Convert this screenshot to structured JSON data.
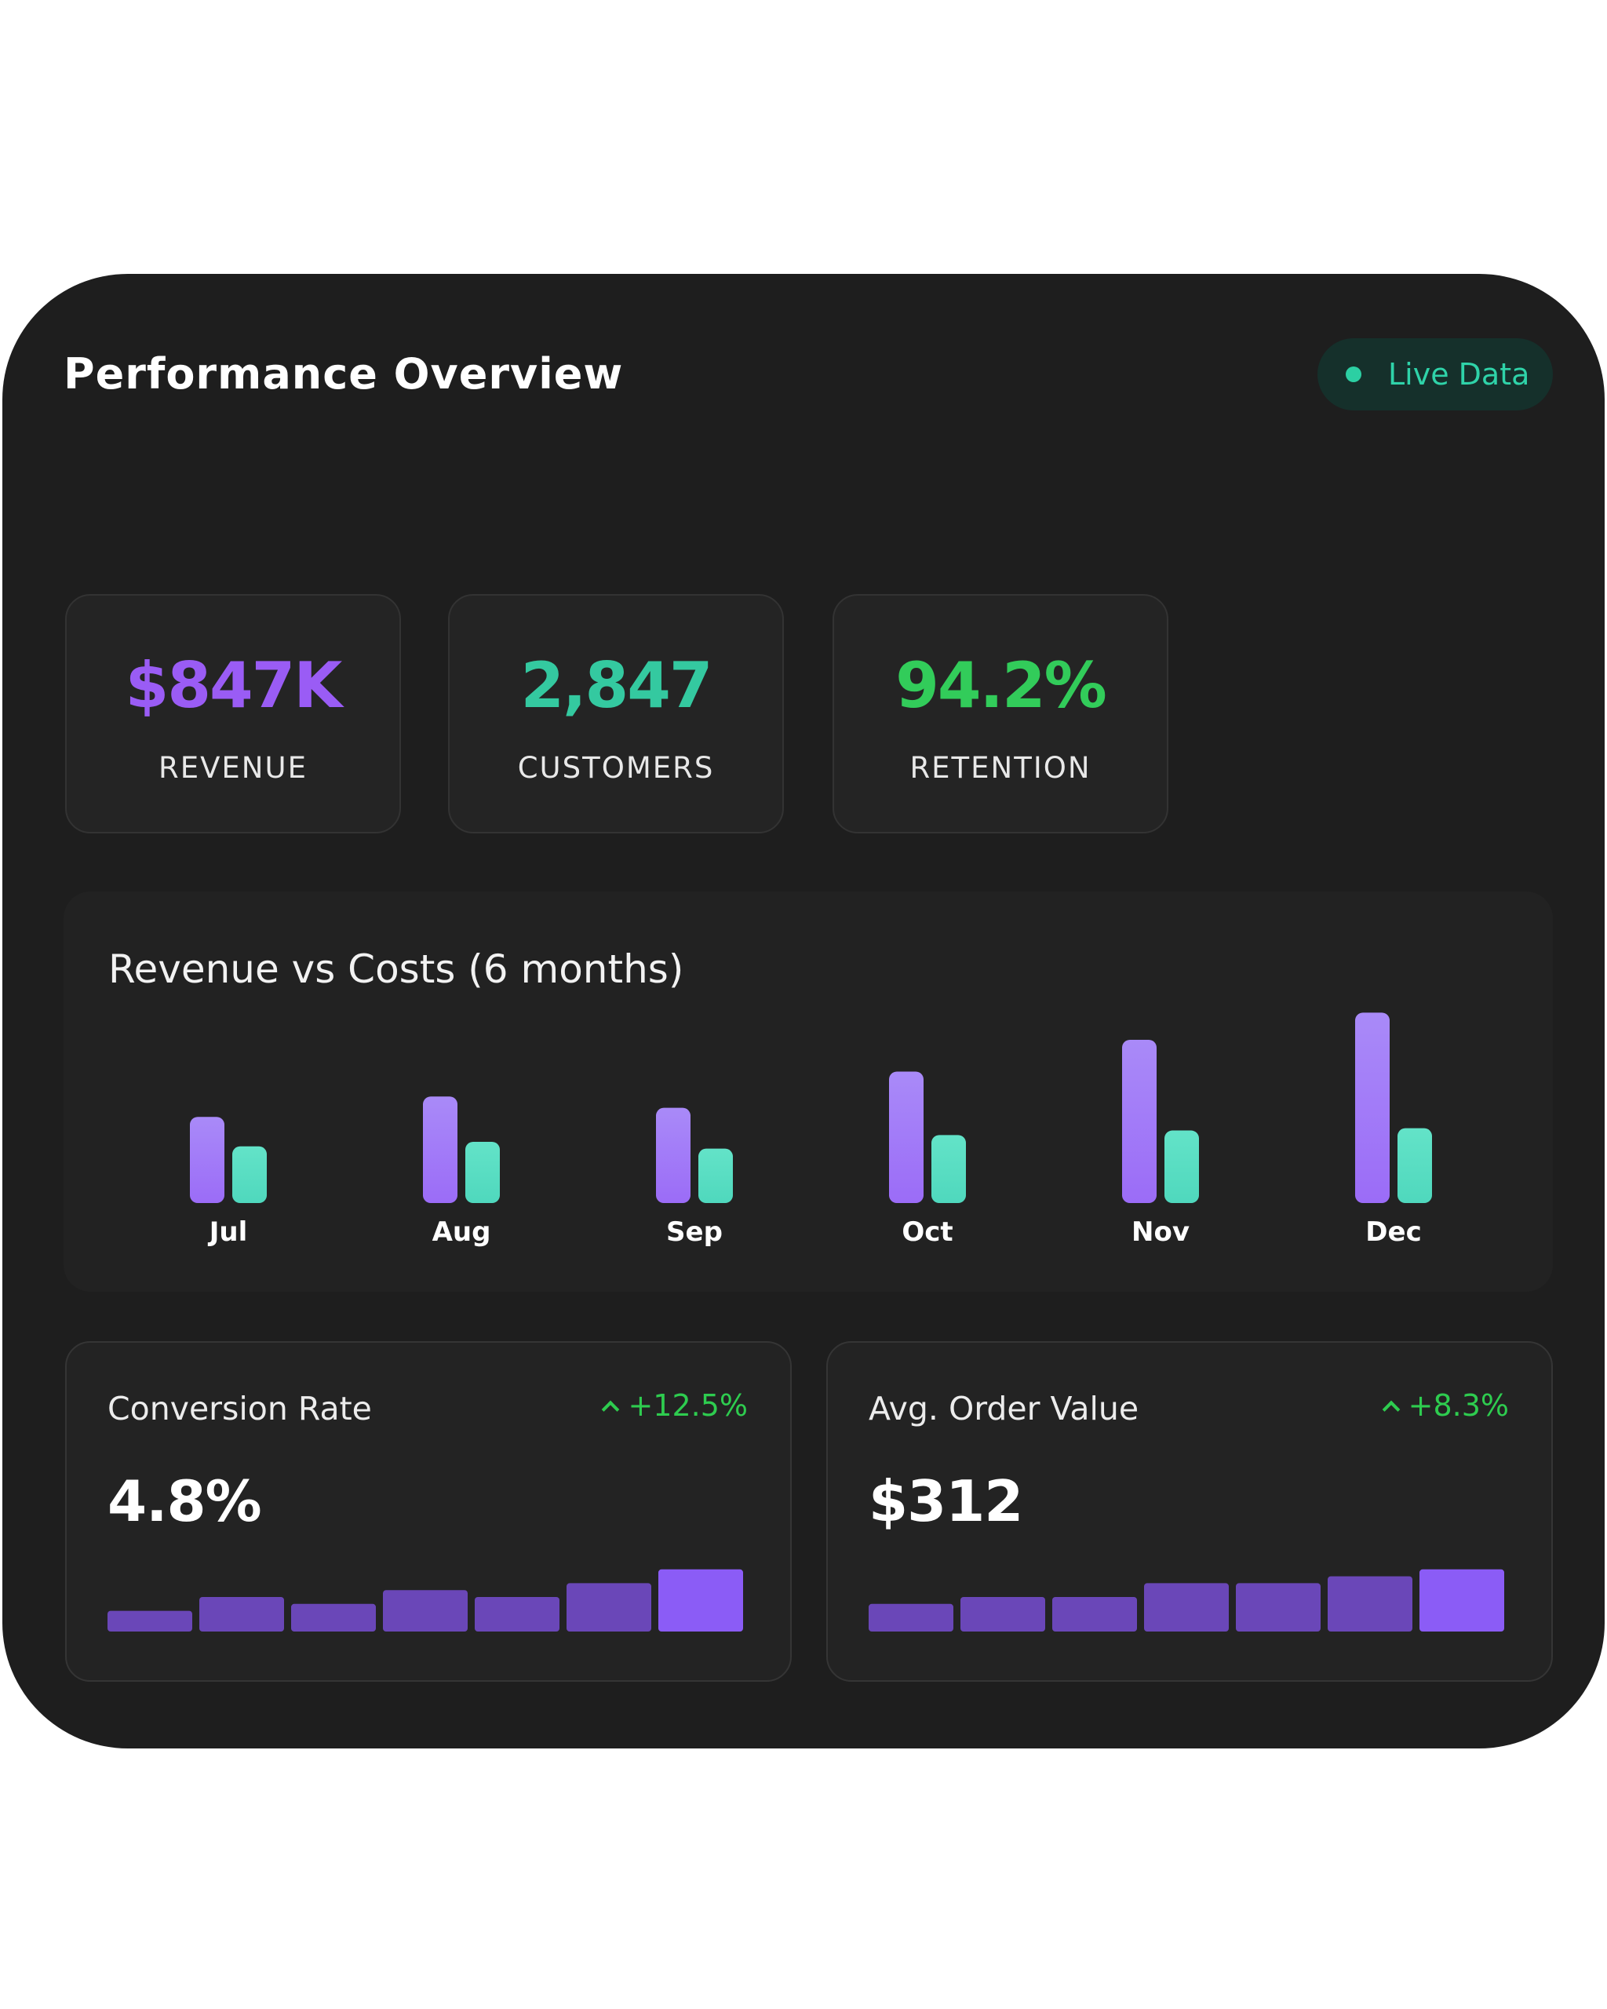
{
  "header": {
    "title": "Performance Overview",
    "badge_label": "Live Data",
    "badge_dot_color": "#2ccfa3"
  },
  "stats": [
    {
      "value": "$847K",
      "label": "REVENUE",
      "color": "#9a5cf5"
    },
    {
      "value": "2,847",
      "label": "CUSTOMERS",
      "color": "#34c9a0"
    },
    {
      "value": "94.2%",
      "label": "RETENTION",
      "color": "#32cc5a"
    }
  ],
  "chart_data": {
    "type": "bar",
    "title": "Revenue vs Costs (6 months)",
    "categories": [
      "Jul",
      "Aug",
      "Sep",
      "Oct",
      "Nov",
      "Dec"
    ],
    "series": [
      {
        "values": [
          38,
          47,
          42,
          58,
          72,
          84
        ],
        "color": "#9b6cf7"
      },
      {
        "values": [
          25,
          27,
          24,
          30,
          32,
          33
        ],
        "color": "#4fd8bd"
      }
    ],
    "grid": false,
    "legend": "none"
  },
  "metrics": [
    {
      "label": "Conversion Rate",
      "change": "+12.5%",
      "value": "4.8%",
      "trend": [
        3,
        5,
        4,
        6,
        5,
        7,
        9
      ]
    },
    {
      "label": "Avg. Order Value",
      "change": "+8.3%",
      "value": "$312",
      "trend": [
        4,
        5,
        5,
        7,
        7,
        8,
        9
      ]
    }
  ],
  "colors": {
    "card_background": "#1e1e1e",
    "accent_purple": "#8b5cf6",
    "positive_green": "#2ecc4f"
  }
}
